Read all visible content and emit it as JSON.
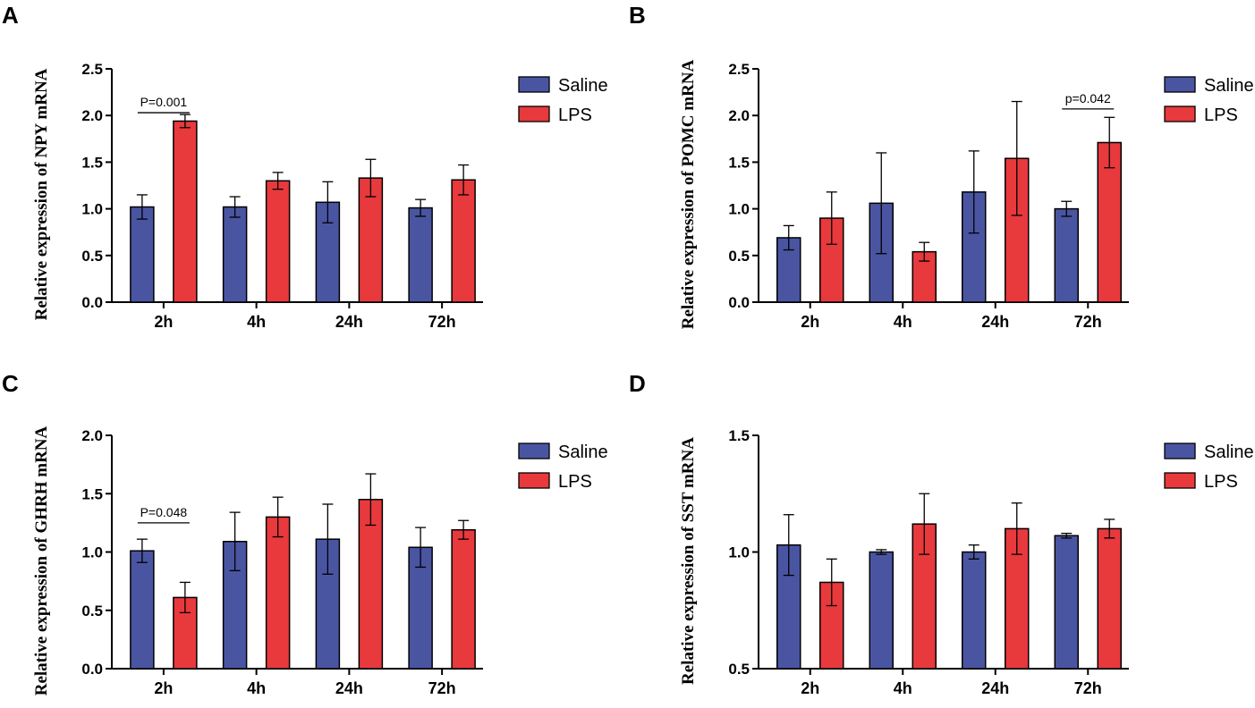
{
  "chart_data": [
    {
      "panel": "A",
      "type": "bar",
      "ylabel": "Relative expression of  NPY mRNA",
      "categories": [
        "2h",
        "4h",
        "24h",
        "72h"
      ],
      "ylim": [
        0.0,
        2.5
      ],
      "yticks": [
        "0.0",
        "0.5",
        "1.0",
        "1.5",
        "2.0",
        "2.5"
      ],
      "series": [
        {
          "name": "Saline",
          "color": "#4a55a2",
          "values": [
            1.02,
            1.02,
            1.07,
            1.01
          ],
          "errors": [
            0.13,
            0.11,
            0.22,
            0.09
          ]
        },
        {
          "name": "LPS",
          "color": "#e8393d",
          "values": [
            1.94,
            1.3,
            1.33,
            1.31
          ],
          "errors": [
            0.07,
            0.09,
            0.2,
            0.16
          ]
        }
      ],
      "annotations": [
        {
          "text": "P=0.001",
          "category": "2h",
          "y": 2.03
        }
      ]
    },
    {
      "panel": "B",
      "type": "bar",
      "ylabel": "Relative expression of  POMC mRNA",
      "categories": [
        "2h",
        "4h",
        "24h",
        "72h"
      ],
      "ylim": [
        0.0,
        2.5
      ],
      "yticks": [
        "0.0",
        "0.5",
        "1.0",
        "1.5",
        "2.0",
        "2.5"
      ],
      "series": [
        {
          "name": "Saline",
          "color": "#4a55a2",
          "values": [
            0.69,
            1.06,
            1.18,
            1.0
          ],
          "errors": [
            0.13,
            0.54,
            0.44,
            0.08
          ]
        },
        {
          "name": "LPS",
          "color": "#e8393d",
          "values": [
            0.9,
            0.54,
            1.54,
            1.71
          ],
          "errors": [
            0.28,
            0.1,
            0.61,
            0.27
          ]
        }
      ],
      "annotations": [
        {
          "text": "p=0.042",
          "category": "72h",
          "y": 2.07
        }
      ]
    },
    {
      "panel": "C",
      "type": "bar",
      "ylabel": "Relative expression of  GHRH mRNA",
      "categories": [
        "2h",
        "4h",
        "24h",
        "72h"
      ],
      "ylim": [
        0.0,
        2.0
      ],
      "yticks": [
        "0.0",
        "0.5",
        "1.0",
        "1.5",
        "2.0"
      ],
      "series": [
        {
          "name": "Saline",
          "color": "#4a55a2",
          "values": [
            1.01,
            1.09,
            1.11,
            1.04
          ],
          "errors": [
            0.1,
            0.25,
            0.3,
            0.17
          ]
        },
        {
          "name": "LPS",
          "color": "#e8393d",
          "values": [
            0.61,
            1.3,
            1.45,
            1.19
          ],
          "errors": [
            0.13,
            0.17,
            0.22,
            0.08
          ]
        }
      ],
      "annotations": [
        {
          "text": "P=0.048",
          "category": "2h",
          "y": 1.25
        }
      ]
    },
    {
      "panel": "D",
      "type": "bar",
      "ylabel": "Relative expression of  SST mRNA",
      "categories": [
        "2h",
        "4h",
        "24h",
        "72h"
      ],
      "ylim": [
        0.5,
        1.5
      ],
      "yticks": [
        "0.5",
        "1.0",
        "1.5"
      ],
      "series": [
        {
          "name": "Saline",
          "color": "#4a55a2",
          "values": [
            1.03,
            1.0,
            1.0,
            1.07
          ],
          "errors": [
            0.13,
            0.01,
            0.03,
            0.01
          ]
        },
        {
          "name": "LPS",
          "color": "#e8393d",
          "values": [
            0.87,
            1.12,
            1.1,
            1.1
          ],
          "errors": [
            0.1,
            0.13,
            0.11,
            0.04
          ]
        }
      ],
      "annotations": []
    }
  ]
}
